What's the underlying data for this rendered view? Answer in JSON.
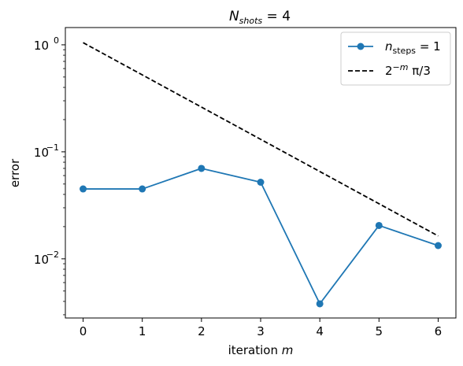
{
  "chart_data": {
    "type": "line",
    "title": {
      "var": "N",
      "sub": "shots",
      "rest": " = 4"
    },
    "xlabel": {
      "text": "iteration ",
      "var": "m"
    },
    "ylabel": "error",
    "yscale": "log",
    "xlim": [
      -0.3,
      6.3
    ],
    "ylim": [
      0.0028,
      1.45
    ],
    "x_ticks": [
      0,
      1,
      2,
      3,
      4,
      5,
      6
    ],
    "y_ticks": [
      {
        "value": 1,
        "base": "10",
        "exp": "0"
      },
      {
        "value": 0.1,
        "base": "10",
        "exp": "−1"
      },
      {
        "value": 0.01,
        "base": "10",
        "exp": "−2"
      }
    ],
    "legend_position": "upper right",
    "series": [
      {
        "legend": {
          "var": "n",
          "sub": "steps",
          "rest": " = 1"
        },
        "color": "#1f77b4",
        "style": "solid",
        "marker": "circle",
        "x": [
          0,
          1,
          2,
          3,
          4,
          5,
          6
        ],
        "y": [
          0.045,
          0.045,
          0.07,
          0.052,
          0.0038,
          0.0205,
          0.0133
        ]
      },
      {
        "legend": {
          "base": "2",
          "sup": "−m",
          "rest": " π/3"
        },
        "color": "#000000",
        "style": "dashed",
        "marker": "none",
        "x": [
          0,
          1,
          2,
          3,
          4,
          5,
          6
        ],
        "y": [
          1.0472,
          0.5236,
          0.2618,
          0.1309,
          0.06545,
          0.032725,
          0.016362
        ]
      }
    ]
  }
}
